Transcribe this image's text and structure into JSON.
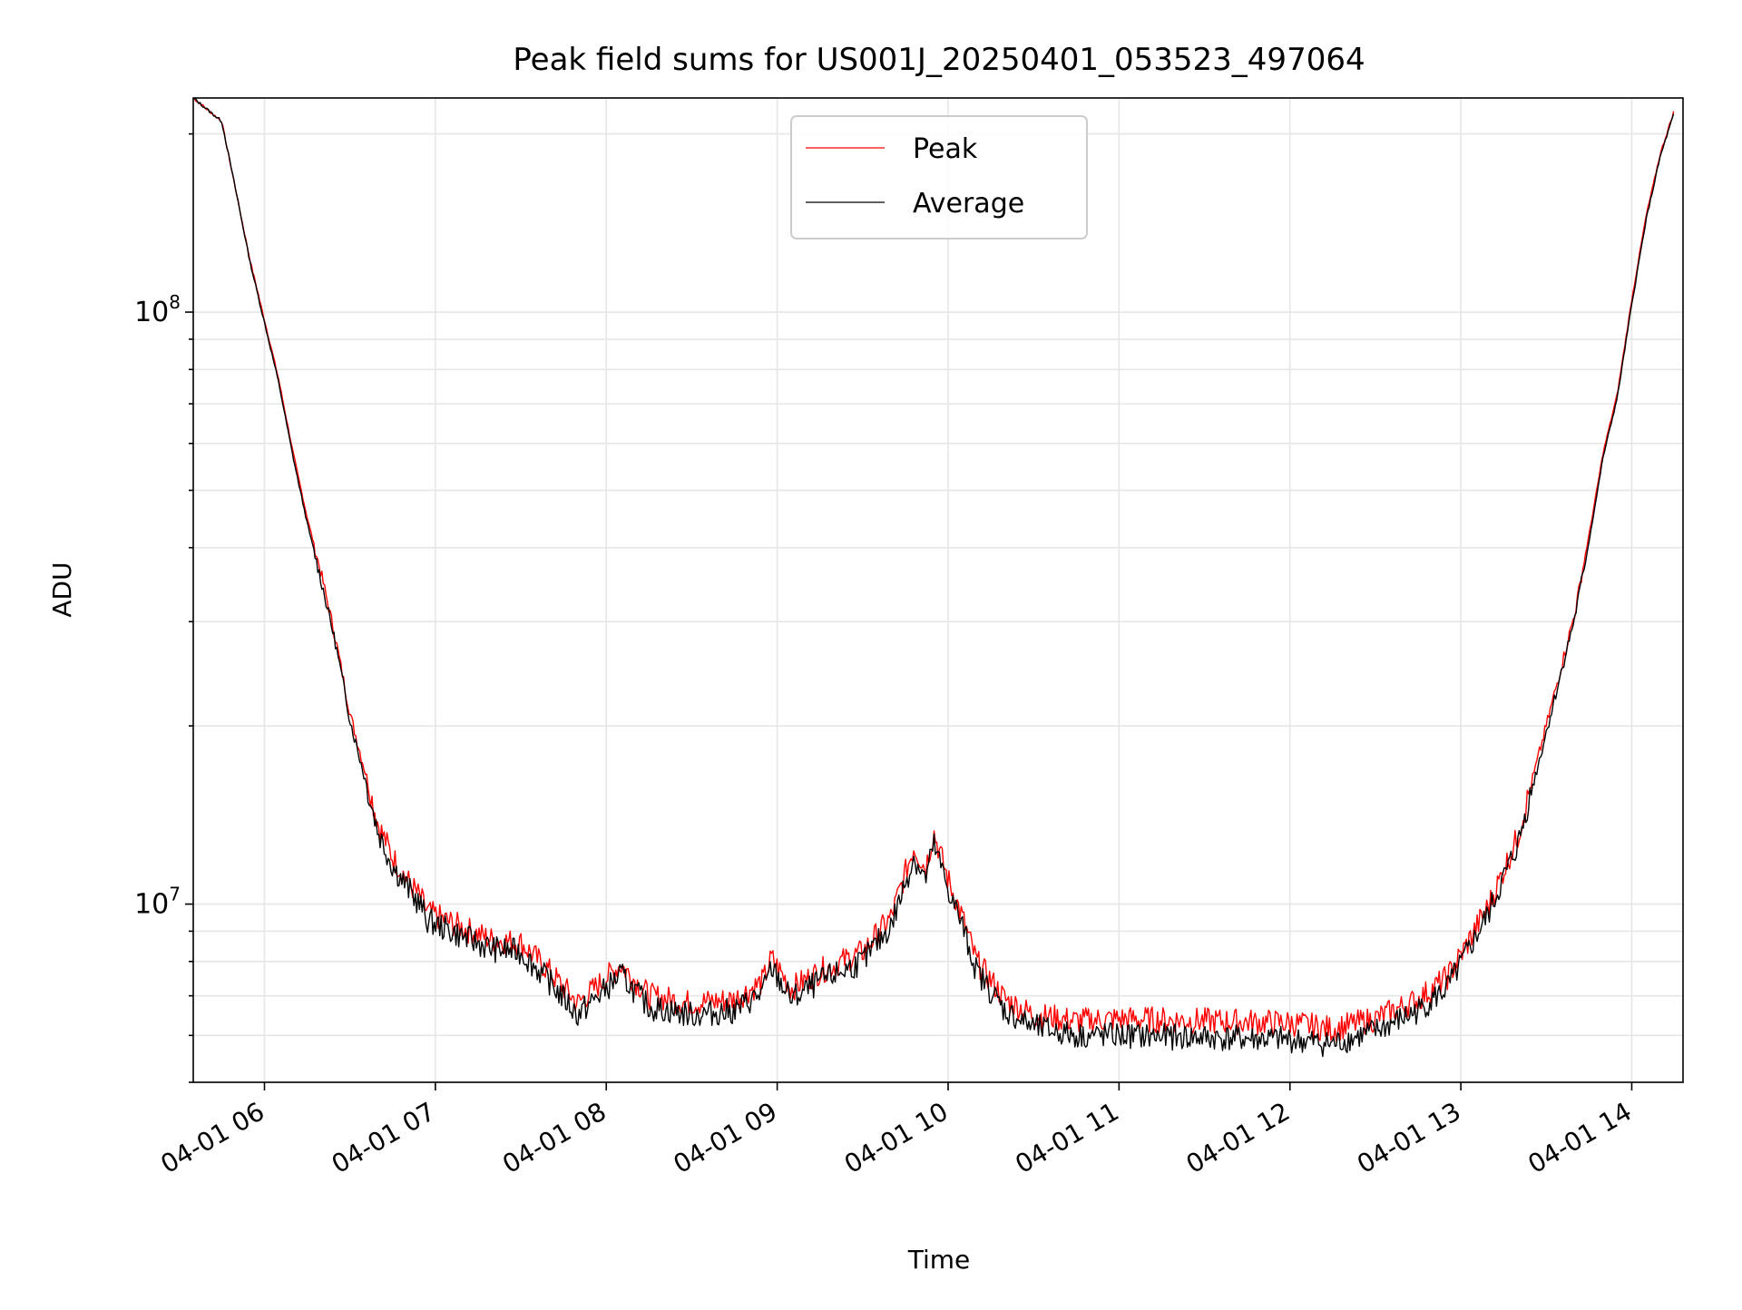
{
  "chart_data": {
    "type": "line",
    "title": "Peak field sums for US001J_20250401_053523_497064",
    "xlabel": "Time",
    "ylabel": "ADU",
    "yscale": "log",
    "grid": true,
    "legend_position": "top-center",
    "xlim": [
      "2025-04-01 05:35",
      "2025-04-01 14:18"
    ],
    "ylim": [
      5000000,
      230000000
    ],
    "x_ticks": [
      "04-01 06",
      "04-01 07",
      "04-01 08",
      "04-01 09",
      "04-01 10",
      "04-01 11",
      "04-01 12",
      "04-01 13",
      "04-01 14"
    ],
    "x_tick_values": [
      "2025-04-01 06:00",
      "2025-04-01 07:00",
      "2025-04-01 08:00",
      "2025-04-01 09:00",
      "2025-04-01 10:00",
      "2025-04-01 11:00",
      "2025-04-01 12:00",
      "2025-04-01 13:00",
      "2025-04-01 14:00"
    ],
    "y_ticks": [
      {
        "value": 10000000,
        "base": "10",
        "exp": "7"
      },
      {
        "value": 100000000,
        "base": "10",
        "exp": "8"
      }
    ],
    "series": [
      {
        "name": "Peak",
        "color": "#ff0000",
        "x": [
          "2025-04-01 05:35",
          "2025-04-01 05:45",
          "2025-04-01 05:50",
          "2025-04-01 05:55",
          "2025-04-01 06:00",
          "2025-04-01 06:05",
          "2025-04-01 06:10",
          "2025-04-01 06:15",
          "2025-04-01 06:20",
          "2025-04-01 06:25",
          "2025-04-01 06:30",
          "2025-04-01 06:35",
          "2025-04-01 06:40",
          "2025-04-01 06:45",
          "2025-04-01 06:50",
          "2025-04-01 06:55",
          "2025-04-01 06:57",
          "2025-04-01 07:10",
          "2025-04-01 07:20",
          "2025-04-01 07:30",
          "2025-04-01 07:40",
          "2025-04-01 07:50",
          "2025-04-01 08:00",
          "2025-04-01 08:05",
          "2025-04-01 08:15",
          "2025-04-01 08:30",
          "2025-04-01 08:45",
          "2025-04-01 08:55",
          "2025-04-01 08:58",
          "2025-04-01 09:05",
          "2025-04-01 09:15",
          "2025-04-01 09:30",
          "2025-04-01 09:40",
          "2025-04-01 09:48",
          "2025-04-01 09:52",
          "2025-04-01 09:55",
          "2025-04-01 10:00",
          "2025-04-01 10:05",
          "2025-04-01 10:10",
          "2025-04-01 10:20",
          "2025-04-01 10:30",
          "2025-04-01 10:45",
          "2025-04-01 11:00",
          "2025-04-01 11:30",
          "2025-04-01 12:00",
          "2025-04-01 12:15",
          "2025-04-01 12:30",
          "2025-04-01 12:45",
          "2025-04-01 12:55",
          "2025-04-01 13:00",
          "2025-04-01 13:10",
          "2025-04-01 13:20",
          "2025-04-01 13:30",
          "2025-04-01 13:40",
          "2025-04-01 13:45",
          "2025-04-01 13:50",
          "2025-04-01 13:55",
          "2025-04-01 14:00",
          "2025-04-01 14:05",
          "2025-04-01 14:10",
          "2025-04-01 14:15"
        ],
        "y": [
          230000000,
          210000000,
          160000000,
          122000000,
          97000000,
          77000000,
          58000000,
          45000000,
          36000000,
          28000000,
          21000000,
          17000000,
          13600000,
          12000000,
          11000000,
          10200000,
          9700000,
          9100000,
          8700000,
          8600000,
          7700000,
          6800000,
          7500000,
          7900000,
          7000000,
          6800000,
          6900000,
          7400000,
          8100000,
          7200000,
          7700000,
          8300000,
          9500000,
          12500000,
          11500000,
          13200000,
          11000000,
          9500000,
          8000000,
          6900000,
          6500000,
          6350000,
          6400000,
          6350000,
          6300000,
          6150000,
          6400000,
          6900000,
          7500000,
          8200000,
          10000000,
          13000000,
          20000000,
          31000000,
          42000000,
          58000000,
          73000000,
          105000000,
          145000000,
          185000000,
          220000000
        ]
      },
      {
        "name": "Average",
        "color": "#000000",
        "x": [
          "2025-04-01 05:35",
          "2025-04-01 05:45",
          "2025-04-01 05:50",
          "2025-04-01 05:55",
          "2025-04-01 06:00",
          "2025-04-01 06:05",
          "2025-04-01 06:10",
          "2025-04-01 06:15",
          "2025-04-01 06:20",
          "2025-04-01 06:25",
          "2025-04-01 06:30",
          "2025-04-01 06:35",
          "2025-04-01 06:40",
          "2025-04-01 06:45",
          "2025-04-01 06:50",
          "2025-04-01 06:55",
          "2025-04-01 06:57",
          "2025-04-01 07:10",
          "2025-04-01 07:20",
          "2025-04-01 07:30",
          "2025-04-01 07:40",
          "2025-04-01 07:50",
          "2025-04-01 08:00",
          "2025-04-01 08:05",
          "2025-04-01 08:15",
          "2025-04-01 08:30",
          "2025-04-01 08:45",
          "2025-04-01 08:55",
          "2025-04-01 08:58",
          "2025-04-01 09:05",
          "2025-04-01 09:15",
          "2025-04-01 09:30",
          "2025-04-01 09:40",
          "2025-04-01 09:48",
          "2025-04-01 09:52",
          "2025-04-01 09:55",
          "2025-04-01 10:00",
          "2025-04-01 10:05",
          "2025-04-01 10:10",
          "2025-04-01 10:20",
          "2025-04-01 10:30",
          "2025-04-01 10:45",
          "2025-04-01 11:00",
          "2025-04-01 11:30",
          "2025-04-01 12:00",
          "2025-04-01 12:15",
          "2025-04-01 12:30",
          "2025-04-01 12:45",
          "2025-04-01 12:55",
          "2025-04-01 13:00",
          "2025-04-01 13:10",
          "2025-04-01 13:20",
          "2025-04-01 13:30",
          "2025-04-01 13:40",
          "2025-04-01 13:45",
          "2025-04-01 13:50",
          "2025-04-01 13:55",
          "2025-04-01 14:00",
          "2025-04-01 14:05",
          "2025-04-01 14:10",
          "2025-04-01 14:15"
        ],
        "y": [
          230000000,
          210000000,
          160000000,
          121000000,
          96000000,
          76000000,
          57000000,
          44000000,
          35000000,
          27500000,
          20500000,
          16500000,
          13200000,
          11600000,
          10700000,
          9900000,
          9400000,
          8800000,
          8400000,
          8300000,
          7400000,
          6500000,
          7200000,
          7600000,
          6700000,
          6500000,
          6600000,
          7100000,
          7800000,
          6900000,
          7400000,
          8000000,
          9200000,
          12000000,
          11000000,
          12600000,
          10600000,
          9200000,
          7700000,
          6600000,
          6200000,
          6000000,
          6000000,
          5950000,
          5900000,
          5800000,
          6100000,
          6600000,
          7200000,
          7900000,
          9700000,
          12600000,
          19500000,
          30500000,
          41000000,
          57000000,
          72000000,
          103000000,
          143000000,
          183000000,
          218000000
        ]
      }
    ]
  }
}
